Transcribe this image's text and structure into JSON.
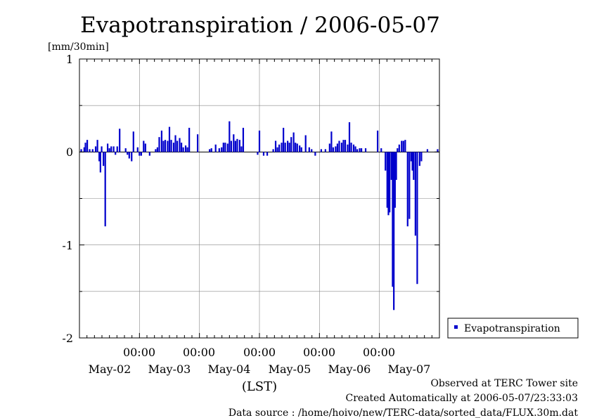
{
  "chart_data": {
    "type": "bar",
    "title": "Evapotranspiration / 2006-05-07",
    "ylabel": "[mm/30min]",
    "xlabel": "(LST)",
    "ylim": [
      -2,
      1
    ],
    "y_ticks": [
      "1",
      "0",
      "-1",
      "-2"
    ],
    "x_range_days": [
      0,
      6
    ],
    "time_ticks": [
      "00:00",
      "00:00",
      "00:00",
      "00:00",
      "00:00"
    ],
    "day_labels": [
      "May-02",
      "May-03",
      "May-04",
      "May-05",
      "May-06",
      "May-07"
    ],
    "grid": true,
    "legend_position": "right",
    "series": [
      {
        "name": "Evapotranspiration",
        "color": "#0000cc",
        "points": [
          [
            0.03,
            0.03
          ],
          [
            0.08,
            0.05
          ],
          [
            0.1,
            0.1
          ],
          [
            0.13,
            0.13
          ],
          [
            0.17,
            0.03
          ],
          [
            0.22,
            0.03
          ],
          [
            0.27,
            0.06
          ],
          [
            0.3,
            0.13
          ],
          [
            0.33,
            -0.1
          ],
          [
            0.35,
            -0.22
          ],
          [
            0.37,
            0.06
          ],
          [
            0.4,
            -0.15
          ],
          [
            0.43,
            -0.8
          ],
          [
            0.47,
            0.09
          ],
          [
            0.5,
            0.04
          ],
          [
            0.53,
            0.06
          ],
          [
            0.57,
            0.06
          ],
          [
            0.6,
            -0.03
          ],
          [
            0.63,
            0.06
          ],
          [
            0.67,
            0.25
          ],
          [
            0.77,
            0.04
          ],
          [
            0.8,
            -0.03
          ],
          [
            0.83,
            -0.07
          ],
          [
            0.87,
            -0.1
          ],
          [
            0.9,
            0.22
          ],
          [
            0.97,
            0.05
          ],
          [
            1.0,
            -0.04
          ],
          [
            1.03,
            -0.04
          ],
          [
            1.07,
            0.12
          ],
          [
            1.1,
            0.09
          ],
          [
            1.17,
            -0.04
          ],
          [
            1.27,
            0.03
          ],
          [
            1.3,
            0.05
          ],
          [
            1.33,
            0.16
          ],
          [
            1.37,
            0.23
          ],
          [
            1.4,
            0.12
          ],
          [
            1.43,
            0.13
          ],
          [
            1.47,
            0.12
          ],
          [
            1.5,
            0.27
          ],
          [
            1.53,
            0.13
          ],
          [
            1.57,
            0.1
          ],
          [
            1.6,
            0.18
          ],
          [
            1.63,
            0.12
          ],
          [
            1.67,
            0.15
          ],
          [
            1.7,
            0.1
          ],
          [
            1.73,
            0.05
          ],
          [
            1.77,
            0.07
          ],
          [
            1.8,
            0.05
          ],
          [
            1.83,
            0.26
          ],
          [
            1.97,
            0.19
          ],
          [
            2.17,
            0.03
          ],
          [
            2.2,
            0.04
          ],
          [
            2.27,
            0.08
          ],
          [
            2.33,
            0.04
          ],
          [
            2.37,
            0.05
          ],
          [
            2.4,
            0.1
          ],
          [
            2.43,
            0.1
          ],
          [
            2.47,
            0.09
          ],
          [
            2.5,
            0.33
          ],
          [
            2.53,
            0.12
          ],
          [
            2.57,
            0.19
          ],
          [
            2.6,
            0.12
          ],
          [
            2.63,
            0.14
          ],
          [
            2.67,
            0.13
          ],
          [
            2.7,
            0.06
          ],
          [
            2.73,
            0.26
          ],
          [
            2.97,
            -0.03
          ],
          [
            3.0,
            0.23
          ],
          [
            3.07,
            -0.04
          ],
          [
            3.13,
            -0.04
          ],
          [
            3.23,
            0.03
          ],
          [
            3.27,
            0.12
          ],
          [
            3.3,
            0.05
          ],
          [
            3.33,
            0.08
          ],
          [
            3.37,
            0.1
          ],
          [
            3.4,
            0.26
          ],
          [
            3.43,
            0.1
          ],
          [
            3.47,
            0.12
          ],
          [
            3.5,
            0.1
          ],
          [
            3.53,
            0.16
          ],
          [
            3.57,
            0.21
          ],
          [
            3.6,
            0.1
          ],
          [
            3.63,
            0.09
          ],
          [
            3.67,
            0.07
          ],
          [
            3.7,
            0.05
          ],
          [
            3.77,
            0.18
          ],
          [
            3.83,
            0.05
          ],
          [
            3.87,
            0.03
          ],
          [
            3.93,
            -0.04
          ],
          [
            4.03,
            0.03
          ],
          [
            4.1,
            0.03
          ],
          [
            4.17,
            0.09
          ],
          [
            4.2,
            0.22
          ],
          [
            4.23,
            0.05
          ],
          [
            4.27,
            0.06
          ],
          [
            4.3,
            0.09
          ],
          [
            4.33,
            0.12
          ],
          [
            4.37,
            0.1
          ],
          [
            4.4,
            0.13
          ],
          [
            4.43,
            0.13
          ],
          [
            4.47,
            0.08
          ],
          [
            4.5,
            0.32
          ],
          [
            4.53,
            0.1
          ],
          [
            4.57,
            0.08
          ],
          [
            4.6,
            0.06
          ],
          [
            4.63,
            0.03
          ],
          [
            4.67,
            0.04
          ],
          [
            4.7,
            0.04
          ],
          [
            4.77,
            0.04
          ],
          [
            4.97,
            0.23
          ],
          [
            5.03,
            0.04
          ],
          [
            5.1,
            -0.2
          ],
          [
            5.13,
            -0.6
          ],
          [
            5.15,
            -0.68
          ],
          [
            5.17,
            -0.65
          ],
          [
            5.2,
            -0.3
          ],
          [
            5.22,
            -1.45
          ],
          [
            5.24,
            -1.7
          ],
          [
            5.26,
            -0.6
          ],
          [
            5.28,
            -0.3
          ],
          [
            5.3,
            0.04
          ],
          [
            5.33,
            0.08
          ],
          [
            5.37,
            0.12
          ],
          [
            5.4,
            0.12
          ],
          [
            5.43,
            0.13
          ],
          [
            5.47,
            -0.8
          ],
          [
            5.5,
            -0.72
          ],
          [
            5.53,
            -0.1
          ],
          [
            5.55,
            -0.2
          ],
          [
            5.57,
            -0.3
          ],
          [
            5.6,
            -0.9
          ],
          [
            5.63,
            -1.42
          ],
          [
            5.67,
            -0.15
          ],
          [
            5.7,
            -0.1
          ],
          [
            5.8,
            0.03
          ],
          [
            5.97,
            0.03
          ]
        ]
      }
    ]
  },
  "footer": {
    "observed": "Observed at TERC Tower site",
    "created": "Created Automatically at 2006-05-07/23:33:03",
    "source": "Data source : /home/hoivo/new/TERC-data/sorted_data/FLUX.30m.dat"
  }
}
